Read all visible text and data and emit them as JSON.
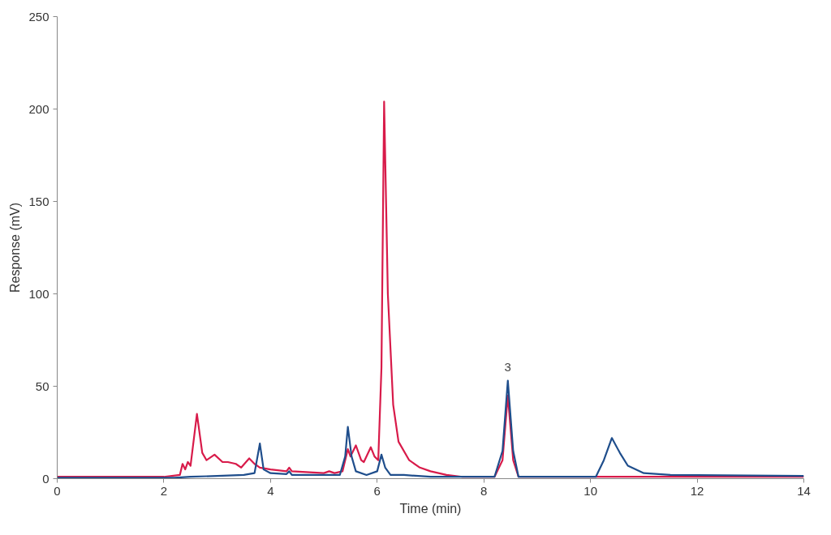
{
  "chart_data": {
    "type": "line",
    "xlabel": "Time (min)",
    "ylabel": "Response (mV)",
    "xlim": [
      0,
      14
    ],
    "ylim": [
      0,
      250
    ],
    "xticks": [
      0,
      2,
      4,
      6,
      8,
      10,
      12,
      14
    ],
    "yticks": [
      0,
      50,
      100,
      150,
      200,
      250
    ],
    "grid": false,
    "marker": "none",
    "line_style": "solid",
    "annotations": [
      {
        "text": "3",
        "x": 8.45,
        "y": 53
      }
    ],
    "series": [
      {
        "color": "#d81b4a",
        "x": [
          0,
          2.0,
          2.3,
          2.35,
          2.4,
          2.45,
          2.5,
          2.62,
          2.72,
          2.8,
          2.95,
          3.1,
          3.2,
          3.35,
          3.45,
          3.6,
          3.7,
          3.8,
          4.0,
          4.3,
          4.35,
          4.4,
          5.0,
          5.1,
          5.2,
          5.35,
          5.45,
          5.5,
          5.6,
          5.7,
          5.75,
          5.88,
          5.95,
          6.02,
          6.08,
          6.13,
          6.2,
          6.3,
          6.4,
          6.6,
          6.8,
          7.0,
          7.3,
          7.6,
          8.2,
          8.35,
          8.45,
          8.55,
          8.65,
          14
        ],
        "values": [
          1,
          1,
          2,
          8,
          5,
          9,
          7,
          35,
          14,
          10,
          13,
          9,
          9,
          8,
          6,
          11,
          8,
          6,
          5,
          4,
          6,
          4,
          3,
          4,
          3,
          4,
          16,
          12,
          18,
          10,
          9,
          17,
          12,
          10,
          60,
          204,
          100,
          40,
          20,
          10,
          6,
          4,
          2,
          1,
          1,
          10,
          45,
          10,
          1,
          1
        ]
      },
      {
        "color": "#1f4e8c",
        "x": [
          0,
          2.2,
          2.5,
          3.0,
          3.5,
          3.7,
          3.8,
          3.87,
          4.0,
          4.3,
          4.35,
          4.4,
          5.3,
          5.4,
          5.45,
          5.52,
          5.6,
          5.8,
          6.0,
          6.08,
          6.15,
          6.25,
          6.5,
          7.0,
          8.2,
          8.35,
          8.45,
          8.55,
          8.65,
          10.1,
          10.25,
          10.4,
          10.55,
          10.7,
          11.0,
          11.5,
          14
        ],
        "values": [
          0.5,
          0.5,
          1,
          1.5,
          2,
          3,
          19,
          5,
          3,
          2.5,
          4,
          2,
          2,
          12,
          28,
          12,
          4,
          2,
          4,
          13,
          6,
          2,
          2,
          1,
          1,
          15,
          53,
          15,
          1,
          1,
          10,
          22,
          14,
          7,
          3,
          2,
          1.5
        ]
      }
    ]
  }
}
